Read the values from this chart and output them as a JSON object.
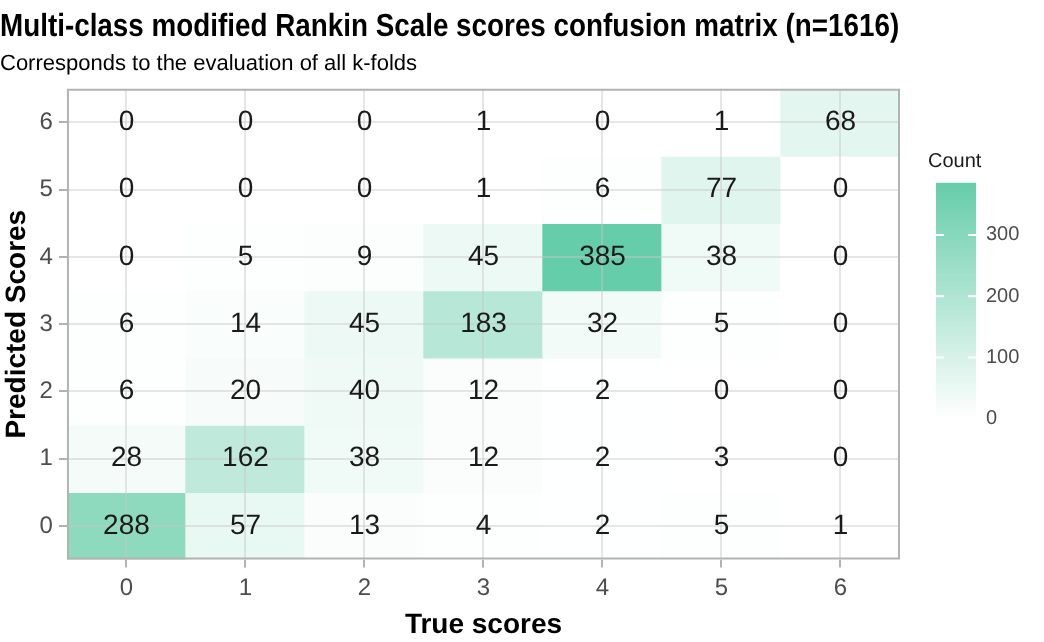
{
  "chart_data": {
    "type": "heatmap",
    "title": "Multi-class modified Rankin Scale scores confusion matrix (n=1616)",
    "subtitle": "Corresponds to the evaluation of all k-folds",
    "xlabel": "True scores",
    "ylabel": "Predicted Scores",
    "clabel": "Count",
    "categories": [
      "0",
      "1",
      "2",
      "3",
      "4",
      "5",
      "6"
    ],
    "y_categories": [
      "6",
      "5",
      "4",
      "3",
      "2",
      "1",
      "0"
    ],
    "cells": [
      [
        0,
        0,
        0,
        1,
        0,
        1,
        68
      ],
      [
        0,
        0,
        0,
        1,
        6,
        77,
        0
      ],
      [
        0,
        5,
        9,
        45,
        385,
        38,
        0
      ],
      [
        6,
        14,
        45,
        183,
        32,
        5,
        0
      ],
      [
        6,
        20,
        40,
        12,
        2,
        0,
        0
      ],
      [
        28,
        162,
        38,
        12,
        2,
        3,
        0
      ],
      [
        288,
        57,
        13,
        4,
        2,
        5,
        1
      ]
    ],
    "clim": [
      0,
      385
    ],
    "cticks": [
      0,
      100,
      200,
      300
    ],
    "grid": true,
    "data_labels": true
  }
}
